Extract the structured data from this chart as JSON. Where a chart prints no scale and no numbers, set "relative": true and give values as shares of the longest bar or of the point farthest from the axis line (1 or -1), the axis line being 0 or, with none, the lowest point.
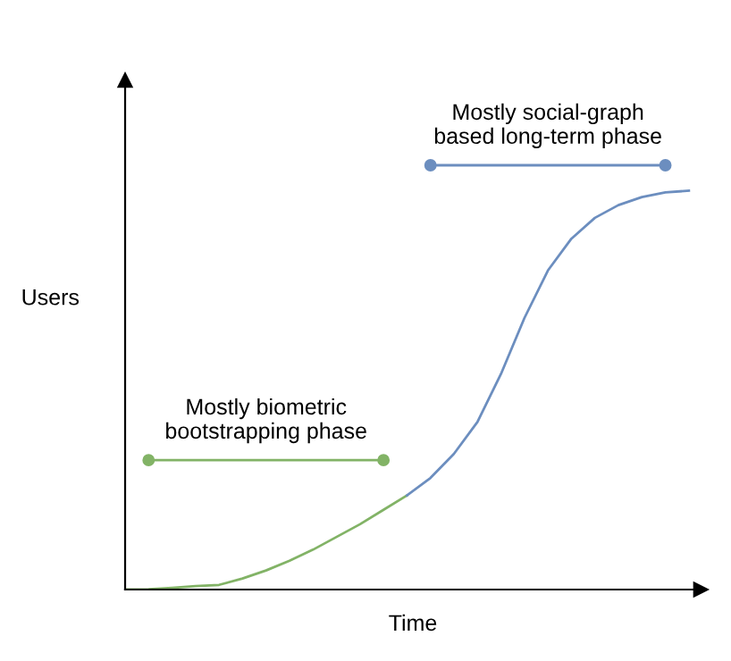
{
  "chart_data": {
    "type": "line",
    "relative": true,
    "xlabel": "Time",
    "ylabel": "Users",
    "legend": false,
    "line_style": "solid",
    "marker": "none",
    "categories": [
      null,
      null,
      null,
      null,
      null,
      null,
      null,
      null,
      null,
      null,
      null,
      null,
      null,
      null,
      null,
      null,
      null,
      null,
      null,
      null,
      null,
      null,
      null,
      null,
      null
    ],
    "series": [
      {
        "color": "#82b366",
        "values": [
          0,
          0.001,
          0.004,
          0.008,
          0.011,
          0.026,
          0.045,
          0.068,
          0.094,
          0.124,
          0.154,
          0.188,
          0.222,
          null,
          null,
          null,
          null,
          null,
          null,
          null,
          null,
          null,
          null,
          null,
          null
        ]
      },
      {
        "color": "#6c8ebf",
        "values": [
          null,
          null,
          null,
          null,
          null,
          null,
          null,
          null,
          null,
          null,
          null,
          null,
          0.222,
          0.263,
          0.32,
          0.395,
          0.508,
          0.64,
          0.752,
          0.827,
          0.876,
          0.906,
          0.925,
          0.936,
          0.94
        ]
      },
      {
        "name": "Mostly biometric\nbootstrapping phase",
        "color": "#82b366",
        "marker": "circle",
        "values": [
          null,
          0.305,
          null,
          null,
          null,
          null,
          null,
          null,
          null,
          null,
          null,
          0.305,
          null,
          null,
          null,
          null,
          null,
          null,
          null,
          null,
          null,
          null,
          null,
          null,
          null
        ]
      },
      {
        "name": "Mostly social-graph\nbased long-term phase",
        "color": "#6c8ebf",
        "marker": "circle",
        "values": [
          null,
          null,
          null,
          null,
          null,
          null,
          null,
          null,
          null,
          null,
          null,
          null,
          null,
          1.0,
          null,
          null,
          null,
          null,
          null,
          null,
          null,
          null,
          null,
          1.0,
          null
        ]
      }
    ]
  }
}
